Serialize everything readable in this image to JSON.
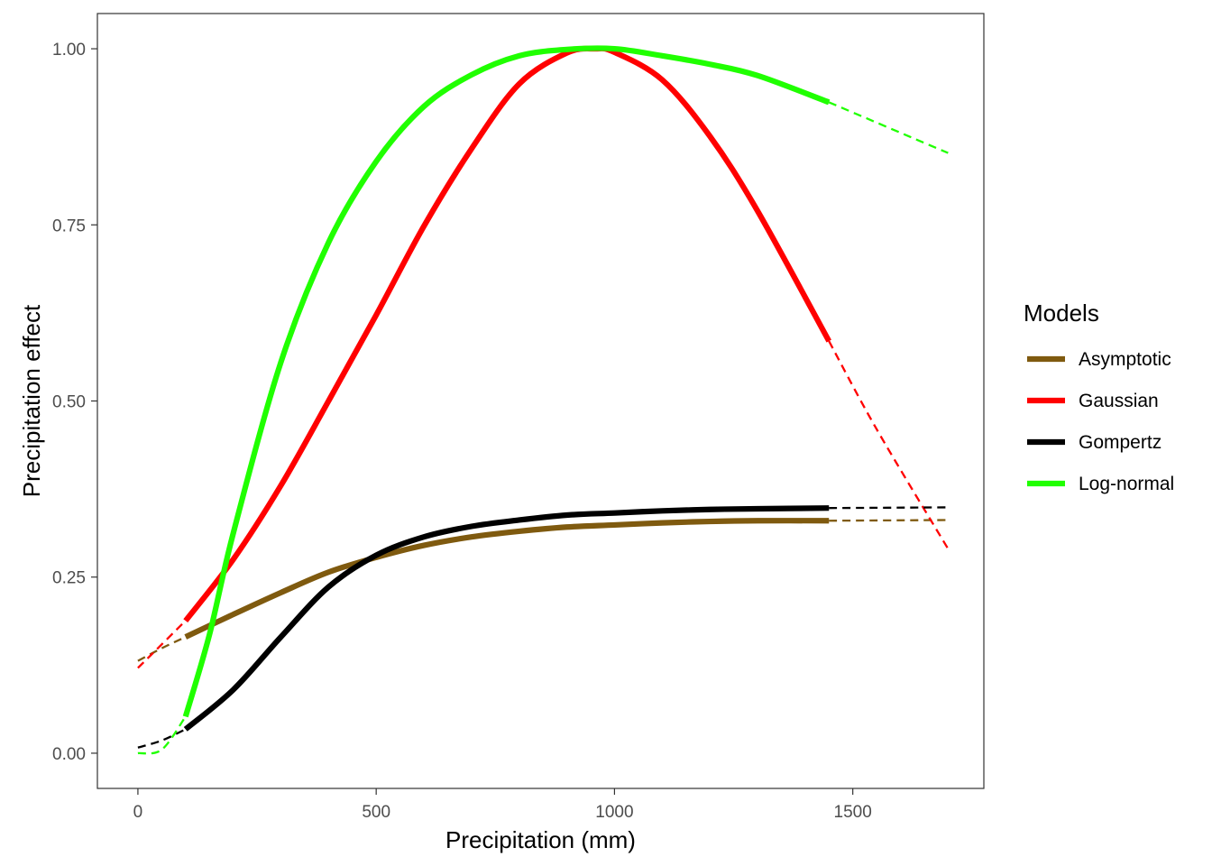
{
  "chart_data": {
    "type": "line",
    "title": "",
    "xlabel": "Precipitation (mm)",
    "ylabel": "Precipitation effect",
    "xlim": [
      -85,
      1775
    ],
    "ylim": [
      -0.05,
      1.05
    ],
    "x_ticks": [
      0,
      500,
      1000,
      1500
    ],
    "x_tick_labels": [
      "0",
      "500",
      "1000",
      "1500"
    ],
    "y_ticks": [
      0,
      0.25,
      0.5,
      0.75,
      1.0
    ],
    "y_tick_labels": [
      "0.00",
      "0.25",
      "0.50",
      "0.75",
      "1.00"
    ],
    "grid": false,
    "legend": {
      "title": "Models",
      "position": "right"
    },
    "solid_range": [
      100,
      1450
    ],
    "dashed_ranges": [
      [
        0,
        100
      ],
      [
        1450,
        1700
      ]
    ],
    "series": [
      {
        "name": "Asymptotic",
        "color": "#7F5A0F",
        "x": [
          0,
          50,
          100,
          200,
          300,
          400,
          500,
          600,
          700,
          800,
          900,
          1000,
          1100,
          1200,
          1300,
          1450,
          1700
        ],
        "y": [
          0.131,
          0.149,
          0.165,
          0.197,
          0.228,
          0.257,
          0.278,
          0.295,
          0.307,
          0.315,
          0.321,
          0.324,
          0.327,
          0.329,
          0.33,
          0.33,
          0.331
        ]
      },
      {
        "name": "Gaussian",
        "color": "#FF0000",
        "x": [
          0,
          100,
          200,
          300,
          400,
          500,
          600,
          700,
          800,
          900,
          960,
          1000,
          1100,
          1200,
          1300,
          1450,
          1550,
          1700
        ],
        "y": [
          0.121,
          0.188,
          0.275,
          0.38,
          0.5,
          0.622,
          0.748,
          0.858,
          0.95,
          0.994,
          1.0,
          0.995,
          0.956,
          0.876,
          0.77,
          0.585,
          0.46,
          0.29
        ]
      },
      {
        "name": "Gompertz",
        "color": "#000000",
        "x": [
          0,
          50,
          100,
          200,
          300,
          400,
          500,
          600,
          700,
          800,
          900,
          1000,
          1100,
          1200,
          1300,
          1450,
          1700
        ],
        "y": [
          0.008,
          0.018,
          0.034,
          0.09,
          0.165,
          0.236,
          0.281,
          0.307,
          0.322,
          0.331,
          0.338,
          0.341,
          0.344,
          0.346,
          0.347,
          0.348,
          0.349
        ]
      },
      {
        "name": "Log-normal",
        "color": "#20FF00",
        "x": [
          0,
          50,
          100,
          150,
          200,
          300,
          400,
          500,
          600,
          700,
          800,
          900,
          1000,
          1100,
          1200,
          1300,
          1450,
          1700
        ],
        "y": [
          0.0,
          0.005,
          0.052,
          0.168,
          0.312,
          0.555,
          0.725,
          0.84,
          0.918,
          0.963,
          0.99,
          0.999,
          1.0,
          0.99,
          0.978,
          0.962,
          0.924,
          0.852
        ]
      }
    ]
  }
}
